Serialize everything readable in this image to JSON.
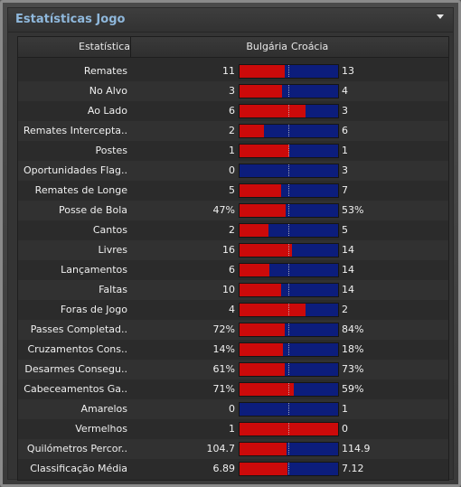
{
  "panel": {
    "title": "Estatísticas Jogo",
    "menu_icon": "dropdown-triangle-icon"
  },
  "columns": {
    "stat": "Estatística",
    "home": "Bulgária",
    "away": "Croácia"
  },
  "colors": {
    "home": "#cc0a0a",
    "away": "#0c1d7c",
    "title": "#8fb8dc"
  },
  "rows": [
    {
      "name": "Remates",
      "home": "11",
      "away": "13",
      "home_share": 0.46
    },
    {
      "name": "No Alvo",
      "home": "3",
      "away": "4",
      "home_share": 0.43
    },
    {
      "name": "Ao Lado",
      "home": "6",
      "away": "3",
      "home_share": 0.67
    },
    {
      "name": "Remates Intercepta..",
      "home": "2",
      "away": "6",
      "home_share": 0.25
    },
    {
      "name": "Postes",
      "home": "1",
      "away": "1",
      "home_share": 0.5
    },
    {
      "name": "Oportunidades Flag..",
      "home": "0",
      "away": "3",
      "home_share": 0.0
    },
    {
      "name": "Remates de Longe",
      "home": "5",
      "away": "7",
      "home_share": 0.42
    },
    {
      "name": "Posse de Bola",
      "home": "47%",
      "away": "53%",
      "home_share": 0.47
    },
    {
      "name": "Cantos",
      "home": "2",
      "away": "5",
      "home_share": 0.29
    },
    {
      "name": "Livres",
      "home": "16",
      "away": "14",
      "home_share": 0.53
    },
    {
      "name": "Lançamentos",
      "home": "6",
      "away": "14",
      "home_share": 0.3
    },
    {
      "name": "Faltas",
      "home": "10",
      "away": "14",
      "home_share": 0.42
    },
    {
      "name": "Foras de Jogo",
      "home": "4",
      "away": "2",
      "home_share": 0.67
    },
    {
      "name": "Passes Completad..",
      "home": "72%",
      "away": "84%",
      "home_share": 0.46
    },
    {
      "name": "Cruzamentos Cons..",
      "home": "14%",
      "away": "18%",
      "home_share": 0.44
    },
    {
      "name": "Desarmes Consegu..",
      "home": "61%",
      "away": "73%",
      "home_share": 0.46
    },
    {
      "name": "Cabeceamentos Ga..",
      "home": "71%",
      "away": "59%",
      "home_share": 0.55
    },
    {
      "name": "Amarelos",
      "home": "0",
      "away": "1",
      "home_share": 0.0
    },
    {
      "name": "Vermelhos",
      "home": "1",
      "away": "0",
      "home_share": 1.0
    },
    {
      "name": "Quilómetros Percor..",
      "home": "104.7",
      "away": "114.9",
      "home_share": 0.48
    },
    {
      "name": "Classificação Média",
      "home": "6.89",
      "away": "7.12",
      "home_share": 0.49
    }
  ]
}
